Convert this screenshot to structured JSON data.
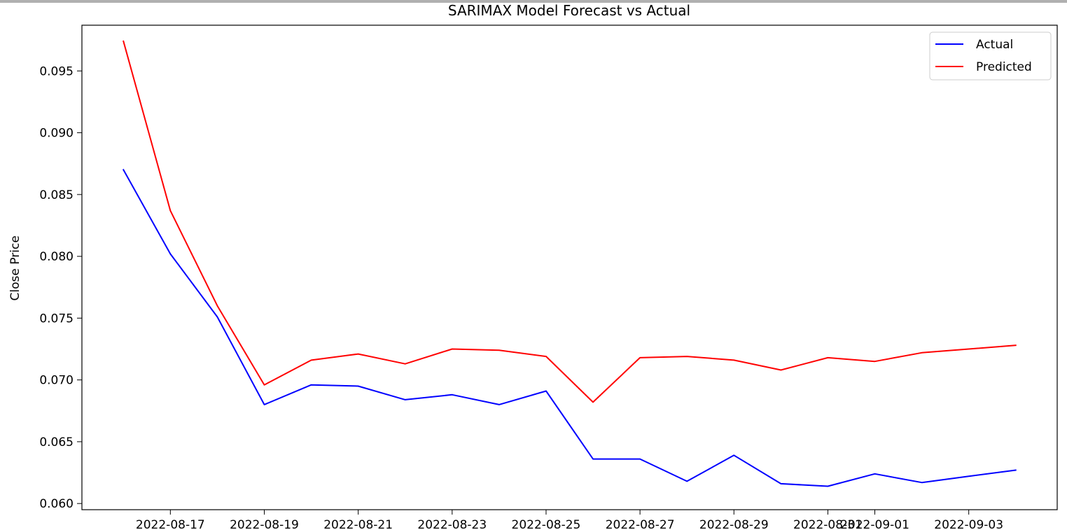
{
  "chart_data": {
    "type": "line",
    "title": "SARIMAX Model Forecast vs Actual",
    "xlabel": "",
    "ylabel": "Close Price",
    "x": [
      "2022-08-16",
      "2022-08-17",
      "2022-08-18",
      "2022-08-19",
      "2022-08-20",
      "2022-08-21",
      "2022-08-22",
      "2022-08-23",
      "2022-08-24",
      "2022-08-25",
      "2022-08-26",
      "2022-08-27",
      "2022-08-28",
      "2022-08-29",
      "2022-08-30",
      "2022-08-31",
      "2022-09-01",
      "2022-09-02",
      "2022-09-03",
      "2022-09-04"
    ],
    "series": [
      {
        "name": "Actual",
        "color": "#0000ff",
        "values": [
          0.087,
          0.0802,
          0.0751,
          0.068,
          0.0696,
          0.0695,
          0.0684,
          0.0688,
          0.068,
          0.0691,
          0.0636,
          0.0636,
          0.0618,
          0.0639,
          0.0616,
          0.0614,
          0.0624,
          0.0617,
          0.0622,
          0.0627
        ]
      },
      {
        "name": "Predicted",
        "color": "#ff0000",
        "values": [
          0.0974,
          0.0837,
          0.076,
          0.0696,
          0.0716,
          0.0721,
          0.0713,
          0.0725,
          0.0724,
          0.0719,
          0.0682,
          0.0718,
          0.0719,
          0.0716,
          0.0708,
          0.0718,
          0.0715,
          0.0722,
          0.0725,
          0.0728
        ]
      }
    ],
    "xticks": [
      {
        "value": "2022-08-17",
        "label": "2022-08-17"
      },
      {
        "value": "2022-08-19",
        "label": "2022-08-19"
      },
      {
        "value": "2022-08-21",
        "label": "2022-08-21"
      },
      {
        "value": "2022-08-23",
        "label": "2022-08-23"
      },
      {
        "value": "2022-08-25",
        "label": "2022-08-25"
      },
      {
        "value": "2022-08-27",
        "label": "2022-08-27"
      },
      {
        "value": "2022-08-29",
        "label": "2022-08-29"
      },
      {
        "value": "2022-08-31",
        "label": "2022-08-31"
      },
      {
        "value": "2022-09-01",
        "label": "2022-09-01"
      },
      {
        "value": "2022-09-03",
        "label": "2022-09-03"
      }
    ],
    "yticks": [
      "0.060",
      "0.065",
      "0.070",
      "0.075",
      "0.080",
      "0.085",
      "0.090",
      "0.095"
    ],
    "ylim": [
      0.0595,
      0.0987
    ],
    "xlim": [
      "2022-08-15T02:48",
      "2022-09-04T21:12"
    ],
    "grid": false,
    "legend_position": "top-right"
  }
}
